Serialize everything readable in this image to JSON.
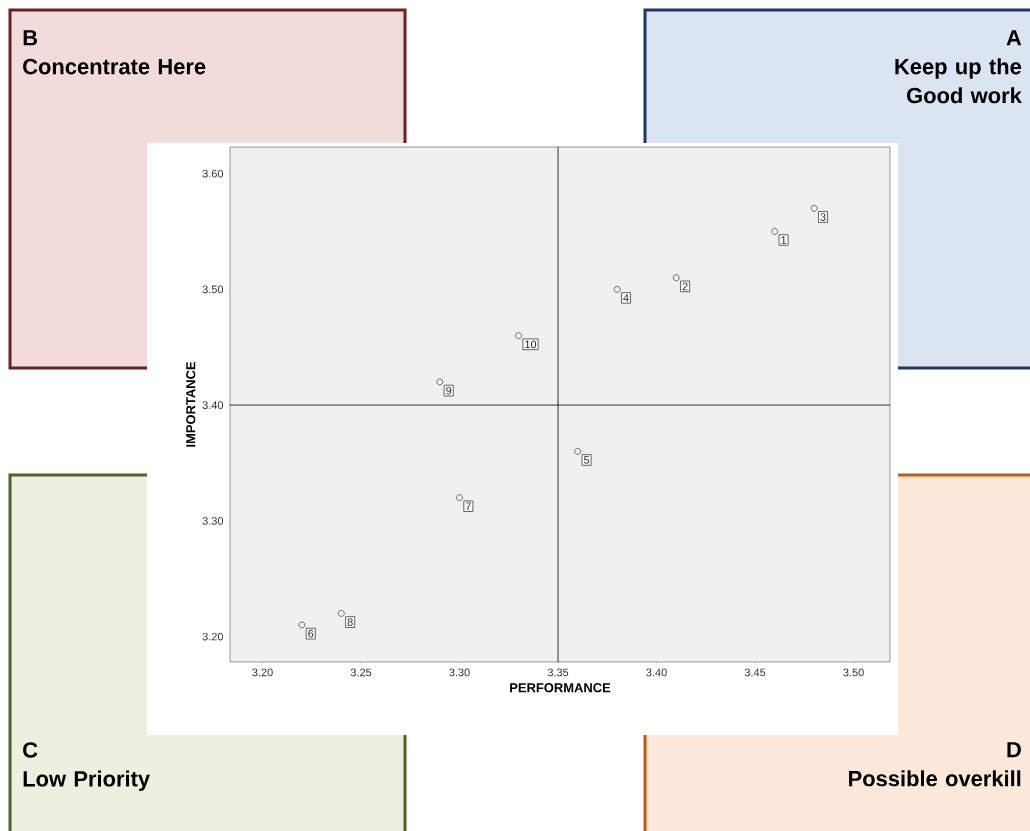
{
  "chart_data": {
    "type": "scatter",
    "xlabel": "PERFORMANCE",
    "ylabel": "IMPORTANCE",
    "x": [
      3.46,
      3.41,
      3.48,
      3.38,
      3.36,
      3.22,
      3.3,
      3.24,
      3.29,
      3.33
    ],
    "values": [
      3.55,
      3.51,
      3.57,
      3.5,
      3.36,
      3.21,
      3.32,
      3.22,
      3.42,
      3.46
    ],
    "color": "#333333",
    "marker": "circle",
    "grid": false,
    "xlim": [
      3.1835,
      3.5185
    ],
    "ylim": [
      3.178,
      3.623
    ],
    "xticks": [
      {
        "value": 3.2,
        "label": "3.20"
      },
      {
        "value": 3.25,
        "label": "3.25"
      },
      {
        "value": 3.3,
        "label": "3.30"
      },
      {
        "value": 3.35,
        "label": "3.35"
      },
      {
        "value": 3.4,
        "label": "3.40"
      },
      {
        "value": 3.45,
        "label": "3.45"
      },
      {
        "value": 3.5,
        "label": "3.50"
      }
    ],
    "yticks": [
      {
        "value": 3.2,
        "label": "3.20"
      },
      {
        "value": 3.3,
        "label": "3.30"
      },
      {
        "value": 3.4,
        "label": "3.40"
      },
      {
        "value": 3.5,
        "label": "3.50"
      },
      {
        "value": 3.6,
        "label": "3.60"
      }
    ],
    "ref_lines": [
      {
        "axis": "x",
        "value": 3.35,
        "color": "#000000"
      },
      {
        "axis": "y",
        "value": 3.4,
        "color": "#000000"
      }
    ],
    "annotations": [
      "B",
      "Concentrate Here",
      "A",
      "Keep up the Good work",
      "C",
      "Low Priority",
      "D",
      "Possible overkill",
      {
        "text": "1",
        "x": 3.46,
        "y": 3.55
      },
      {
        "text": "2",
        "x": 3.41,
        "y": 3.51
      },
      {
        "text": "3",
        "x": 3.48,
        "y": 3.57
      },
      {
        "text": "4",
        "x": 3.38,
        "y": 3.5
      },
      {
        "text": "5",
        "x": 3.36,
        "y": 3.36
      },
      {
        "text": "6",
        "x": 3.22,
        "y": 3.21
      },
      {
        "text": "7",
        "x": 3.3,
        "y": 3.32
      },
      {
        "text": "8",
        "x": 3.24,
        "y": 3.22
      },
      {
        "text": "9",
        "x": 3.29,
        "y": 3.42
      },
      {
        "text": "10",
        "x": 3.33,
        "y": 3.46
      }
    ]
  }
}
